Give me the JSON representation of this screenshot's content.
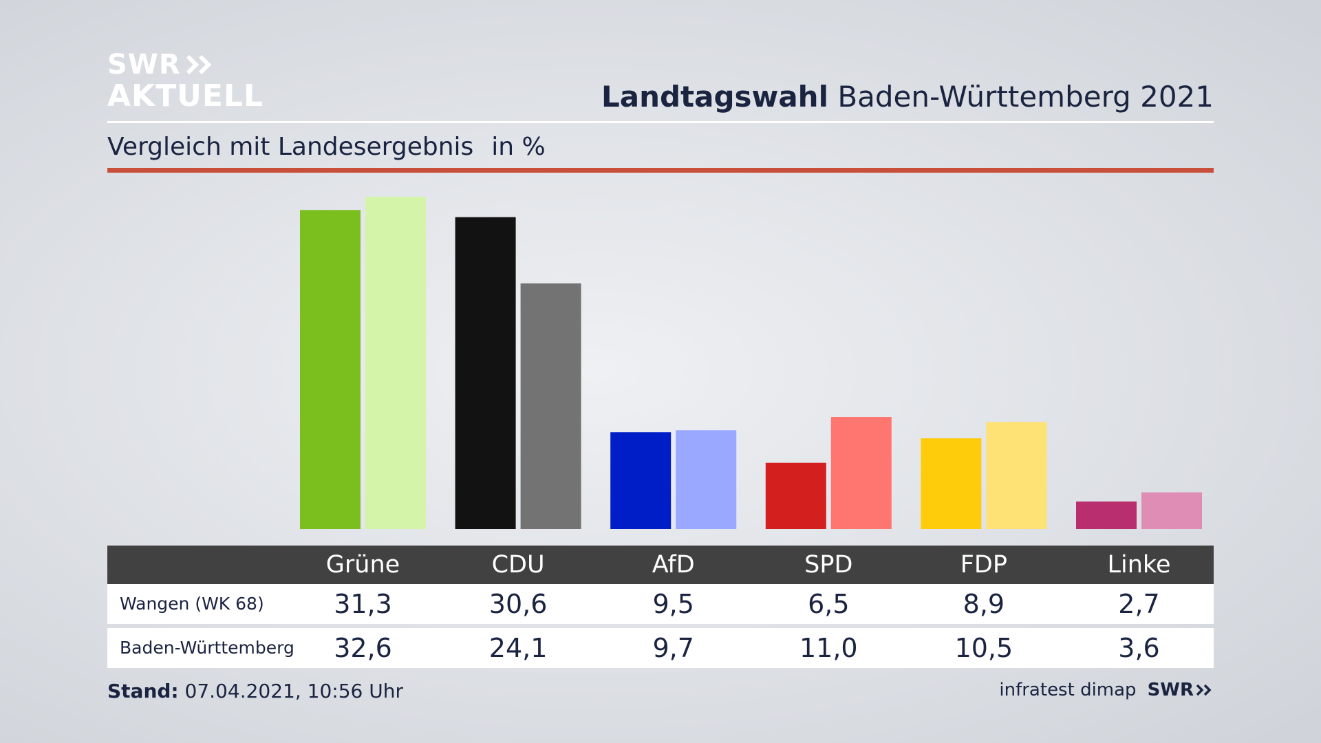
{
  "branding": {
    "logo_line1": "SWR",
    "logo_line2": "AKTUELL",
    "logo_icon": "double-chevron-icon"
  },
  "header": {
    "title_bold": "Landtagswahl",
    "title_rest": "Baden-Württemberg 2021",
    "subtitle": "Vergleich mit Landesergebnis",
    "unit": "in %"
  },
  "colors": {
    "accent_rule": "#c8503b",
    "table_header_bg": "#414141"
  },
  "chart_data": {
    "type": "bar",
    "categories": [
      "Grüne",
      "CDU",
      "AfD",
      "SPD",
      "FDP",
      "Linke"
    ],
    "series": [
      {
        "name": "Wangen (WK 68)",
        "values": [
          31.3,
          30.6,
          9.5,
          6.5,
          8.9,
          2.7
        ],
        "colors": [
          "#7abf1d",
          "#121212",
          "#001ec8",
          "#d41f1f",
          "#ffcc0b",
          "#b92e6e"
        ]
      },
      {
        "name": "Baden-Württemberg",
        "values": [
          32.6,
          24.1,
          9.7,
          11.0,
          10.5,
          3.6
        ],
        "colors": [
          "#d4f5a9",
          "#737373",
          "#9aa8ff",
          "#ff7570",
          "#ffe276",
          "#e08db6"
        ]
      }
    ],
    "ylim": [
      0,
      32.6
    ],
    "grid": false,
    "legend": "table-below"
  },
  "table": {
    "rows": [
      {
        "label": "Wangen (WK 68)",
        "values": [
          "31,3",
          "30,6",
          "9,5",
          "6,5",
          "8,9",
          "2,7"
        ]
      },
      {
        "label": "Baden-Württemberg",
        "values": [
          "32,6",
          "24,1",
          "9,7",
          "11,0",
          "10,5",
          "3,6"
        ]
      }
    ]
  },
  "footer": {
    "stand_label": "Stand:",
    "stand_value": "07.04.2021, 10:56 Uhr",
    "source": "infratest dimap",
    "source_brand": "SWR"
  }
}
